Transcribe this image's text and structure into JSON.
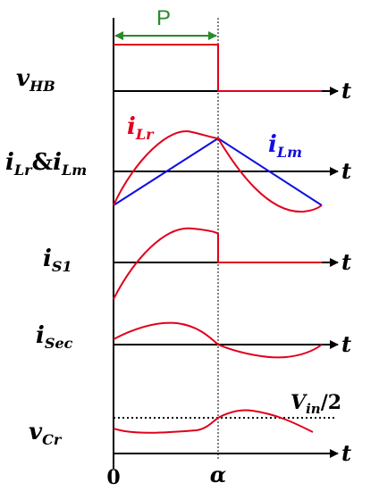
{
  "period_label": "P",
  "labels": {
    "v_hb": [
      "v",
      "HB"
    ],
    "ilr_ilm": [
      "i",
      "Lr",
      "&",
      "i",
      "Lm"
    ],
    "is1": [
      "i",
      "S1"
    ],
    "isec": [
      "i",
      "Sec"
    ],
    "vcr": [
      "v",
      "Cr"
    ]
  },
  "curve_labels": {
    "ilr": [
      "i",
      "Lr"
    ],
    "ilm": [
      "i",
      "Lm"
    ]
  },
  "vin_half": [
    "V",
    "in",
    "/2"
  ],
  "time_axis": "t",
  "origin": "0",
  "alpha": "α"
}
